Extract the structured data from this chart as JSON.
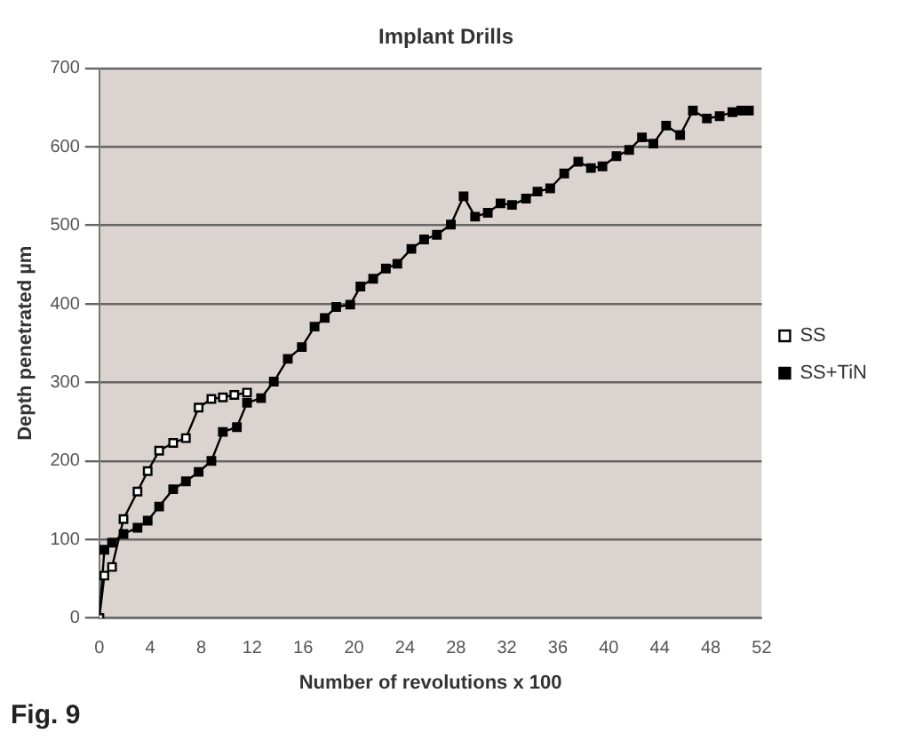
{
  "chart_data": {
    "type": "line",
    "title": "Implant Drills",
    "xlabel": "Number of revolutions x 100",
    "ylabel": "Depth penetrated µm",
    "annotations": [
      "Fig. 9"
    ],
    "xlim": [
      0,
      52
    ],
    "xticks": [
      0,
      4,
      8,
      12,
      16,
      20,
      24,
      28,
      32,
      36,
      40,
      44,
      48,
      52
    ],
    "ylim": [
      0,
      700
    ],
    "yticks": [
      0,
      100,
      200,
      300,
      400,
      500,
      600,
      700
    ],
    "grid": "y",
    "legend": "right",
    "marker": "square",
    "line_style": "solid",
    "series": [
      {
        "name": "SS",
        "color": "#000000",
        "x": [
          0,
          0.4,
          1,
          1.9,
          3,
          3.8,
          4.7,
          5.8,
          6.8,
          7.8,
          8.8,
          9.7,
          10.6,
          11.6
        ],
        "values": [
          0,
          54,
          65,
          126,
          161,
          187,
          213,
          223,
          229,
          268,
          279,
          281,
          284,
          287
        ]
      },
      {
        "name": "SS+TiN",
        "color": "#000000",
        "x": [
          0,
          0.4,
          1,
          1.9,
          3,
          3.8,
          4.7,
          5.8,
          6.8,
          7.8,
          8.8,
          9.7,
          10.8,
          11.6,
          12.7,
          13.7,
          14.8,
          15.9,
          16.9,
          17.7,
          18.6,
          19.7,
          20.5,
          21.5,
          22.5,
          23.4,
          24.5,
          25.5,
          26.5,
          27.6,
          28.6,
          29.5,
          30.5,
          31.5,
          32.4,
          33.5,
          34.4,
          35.4,
          36.5,
          37.6,
          38.6,
          39.5,
          40.6,
          41.6,
          42.6,
          43.5,
          44.5,
          45.6,
          46.6,
          47.7,
          48.7,
          49.7,
          50.4,
          51
        ],
        "values": [
          0,
          87,
          96,
          107,
          115,
          124,
          142,
          164,
          174,
          186,
          200,
          237,
          243,
          274,
          280,
          301,
          330,
          345,
          371,
          382,
          396,
          399,
          422,
          432,
          445,
          451,
          470,
          482,
          488,
          501,
          537,
          511,
          516,
          528,
          526,
          534,
          543,
          547,
          566,
          581,
          573,
          575,
          588,
          596,
          612,
          604,
          627,
          615,
          646,
          636,
          639,
          644,
          646,
          646
        ]
      }
    ]
  }
}
